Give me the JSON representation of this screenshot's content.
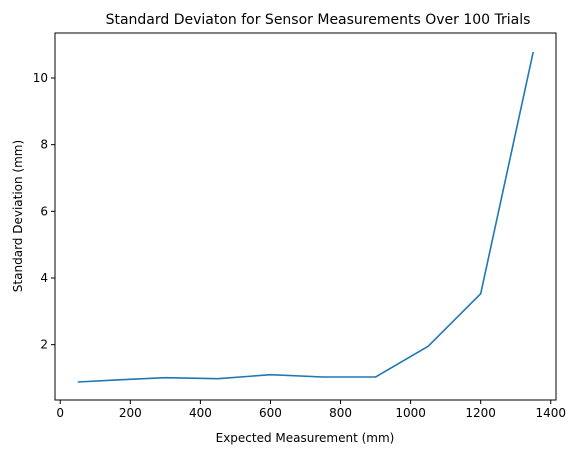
{
  "chart_data": {
    "type": "line",
    "title": "Standard Deviaton for Sensor Measurements Over 100 Trials",
    "xlabel": "Expected Measurement (mm)",
    "ylabel": "Standard Deviation (mm)",
    "xlim": [
      -15,
      1415
    ],
    "ylim": [
      0.34,
      11.35
    ],
    "xticks": [
      0,
      200,
      400,
      600,
      800,
      1000,
      1200,
      1400
    ],
    "yticks": [
      2,
      4,
      6,
      8,
      10
    ],
    "grid": false,
    "legend": "none",
    "series": [
      {
        "color": "#1f77b4",
        "x": [
          50,
          175,
          300,
          450,
          600,
          750,
          900,
          1050,
          1200,
          1350
        ],
        "y": [
          0.88,
          0.95,
          1.01,
          0.98,
          1.1,
          1.03,
          1.03,
          1.95,
          3.53,
          10.78
        ]
      }
    ]
  }
}
